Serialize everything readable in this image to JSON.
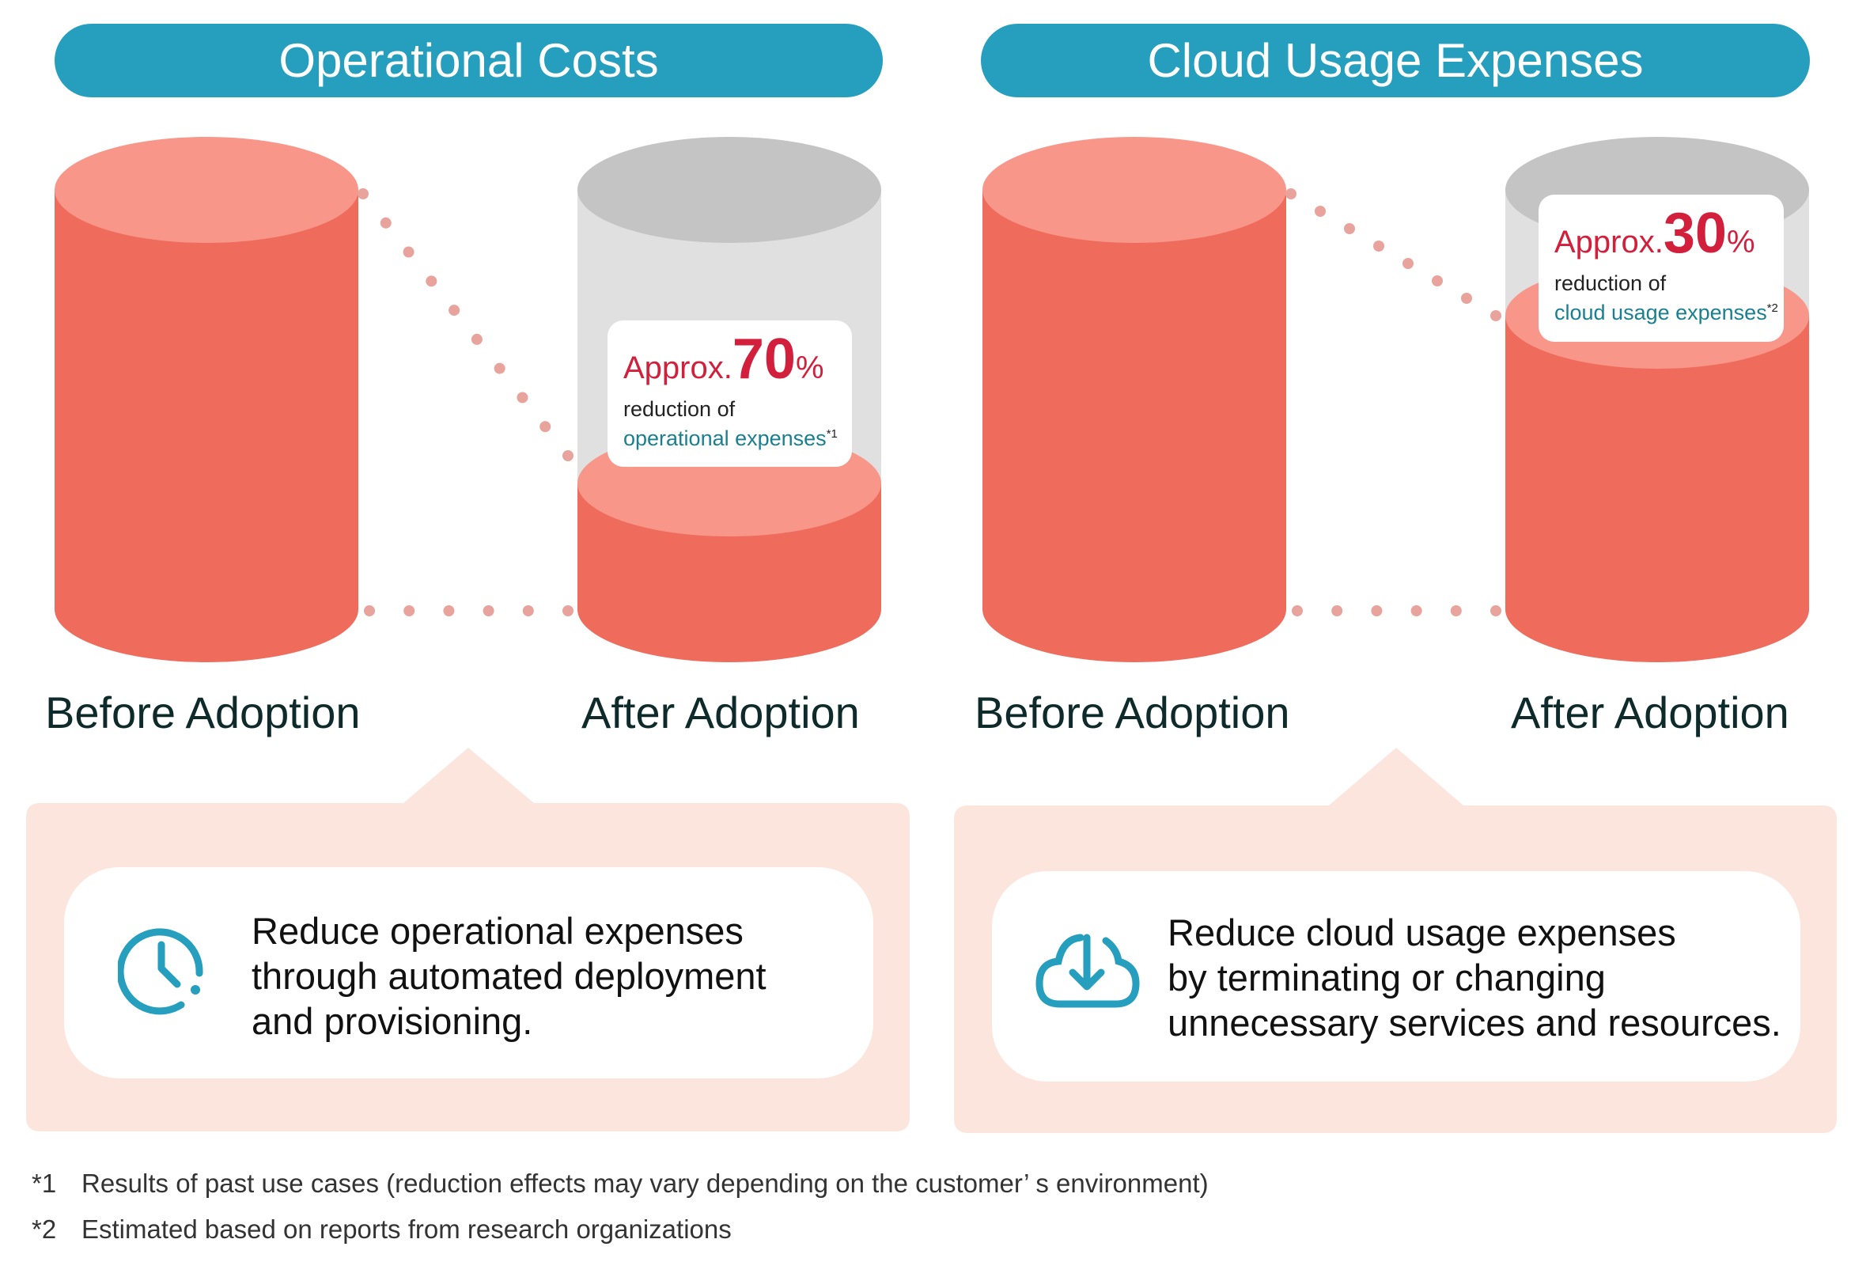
{
  "colors": {
    "header": "#259fbd",
    "bar": "#ef6b5b",
    "bar_top": "#f9968a",
    "empty": "#e0e0e0",
    "empty_top": "#c4c4c4",
    "panel": "#fbe5dc",
    "accent_red": "#d21f3c",
    "accent_teal": "#1a7f8f",
    "dot": "#e8a39c"
  },
  "panels": [
    {
      "title": "Operational Costs",
      "before_label": "Before Adoption",
      "after_label": "After Adoption",
      "after_level": 0.3,
      "badge": {
        "approx": "Approx.",
        "value": "70",
        "unit": "%",
        "line1": "reduction of",
        "line2": "operational expenses",
        "note": "*1"
      },
      "icon": "clock-icon",
      "description": [
        "Reduce operational expenses",
        "through automated deployment",
        "and provisioning."
      ]
    },
    {
      "title": "Cloud Usage Expenses",
      "before_label": "Before Adoption",
      "after_label": "After Adoption",
      "after_level": 0.7,
      "badge": {
        "approx": "Approx.",
        "value": "30",
        "unit": "%",
        "line1": "reduction of",
        "line2": "cloud usage expenses",
        "note": "*2"
      },
      "icon": "cloud-download-icon",
      "description": [
        "Reduce cloud usage expenses",
        "by terminating or changing",
        "unnecessary services and resources."
      ]
    }
  ],
  "footnotes": [
    {
      "mark": "*1",
      "text": "Results of past use cases (reduction effects may vary depending on the customer’ s environment)"
    },
    {
      "mark": "*2",
      "text": "Estimated based on reports from research organizations"
    }
  ]
}
